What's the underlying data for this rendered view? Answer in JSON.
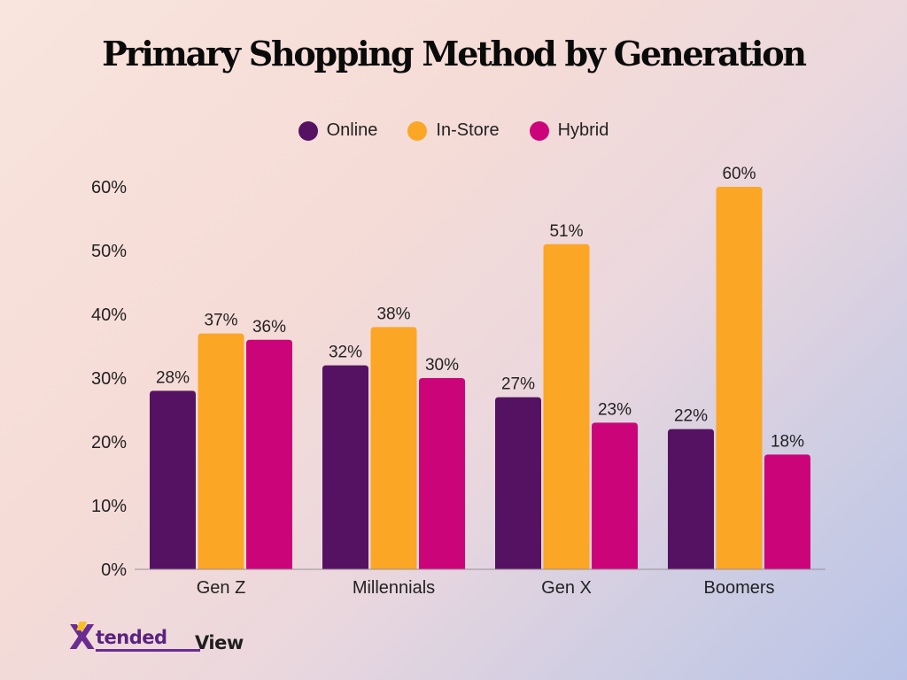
{
  "chart_data": {
    "type": "bar",
    "title": "Primary Shopping Method by Generation",
    "categories": [
      "Gen Z",
      "Millennials",
      "Gen X",
      "Boomers"
    ],
    "series": [
      {
        "name": "Online",
        "color": "#561262",
        "values": [
          28,
          32,
          27,
          22
        ]
      },
      {
        "name": "In-Store",
        "color": "#fca625",
        "values": [
          37,
          38,
          51,
          60
        ]
      },
      {
        "name": "Hybrid",
        "color": "#cc0479",
        "values": [
          36,
          30,
          23,
          18
        ]
      }
    ],
    "value_suffix": "%",
    "ylim": [
      0,
      60
    ],
    "yticks": [
      "0%",
      "10%",
      "20%",
      "30%",
      "40%",
      "50%",
      "60%"
    ],
    "xlabel": "",
    "ylabel": "",
    "legend_position": "top-center",
    "grid": false
  },
  "branding": {
    "logo_text_1": "tended",
    "logo_text_2": "View",
    "logo_letter": "X"
  }
}
